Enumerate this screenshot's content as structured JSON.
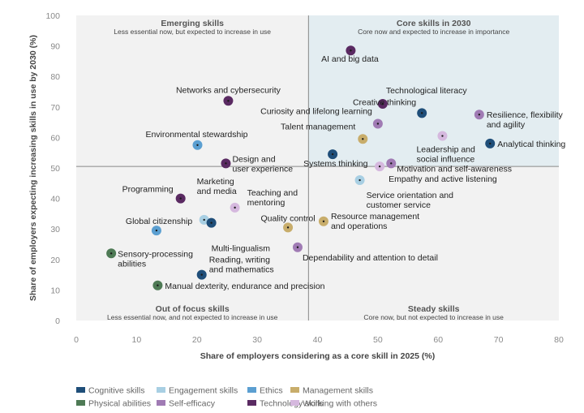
{
  "chart_data": {
    "type": "scatter",
    "xlabel": "Share of employers considering as a core skill in 2025 (%)",
    "ylabel": "Share of employers expecting increasing skills in use by 2030 (%)",
    "xlim": [
      0,
      80
    ],
    "ylim": [
      0,
      100
    ],
    "xticks": [
      "0",
      "10",
      "20",
      "30",
      "40",
      "50",
      "60",
      "70",
      "80"
    ],
    "yticks": [
      "0",
      "10",
      "20",
      "30",
      "40",
      "50",
      "60",
      "70",
      "80",
      "90",
      "100"
    ],
    "divider": {
      "x": 38.5,
      "y": 50.5
    },
    "quadrants": [
      {
        "key": "tl",
        "title": "Emerging skills",
        "subtitle": "Less essential now, but expected to increase in use"
      },
      {
        "key": "tr",
        "title": "Core skills in 2030",
        "subtitle": "Core now and expected to increase in importance"
      },
      {
        "key": "bl",
        "title": "Out of focus skills",
        "subtitle": "Less essential now, and not expected to increase in use"
      },
      {
        "key": "br",
        "title": "Steady skills",
        "subtitle": "Core now, but not expected to increase in use"
      }
    ],
    "categories": [
      {
        "name": "Cognitive skills",
        "color": "#1f4e79"
      },
      {
        "name": "Engagement skills",
        "color": "#a8cfe3"
      },
      {
        "name": "Ethics",
        "color": "#5b9fd1"
      },
      {
        "name": "Management skills",
        "color": "#c8ad6b"
      },
      {
        "name": "Physical abilities",
        "color": "#4e7a55"
      },
      {
        "name": "Self-efficacy",
        "color": "#a07bb4"
      },
      {
        "name": "Technology skills",
        "color": "#5a2a62"
      },
      {
        "name": "Working with others",
        "color": "#d5b8de"
      }
    ],
    "points": [
      {
        "label": "AI and big data",
        "x": 45.5,
        "y": 88.5,
        "cat": 6
      },
      {
        "label": "Technological literacy",
        "x": 50.8,
        "y": 71,
        "cat": 6
      },
      {
        "label": "Creative thinking",
        "x": 57.3,
        "y": 68,
        "cat": 0
      },
      {
        "label": "Resilience, flexibility and agility",
        "x": 66.8,
        "y": 67.5,
        "cat": 5
      },
      {
        "label": "Curiosity and lifelong learning",
        "x": 50,
        "y": 64.5,
        "cat": 5
      },
      {
        "label": "Talent management",
        "x": 47.5,
        "y": 59.5,
        "cat": 3
      },
      {
        "label": "Leadership and social influence",
        "x": 60.7,
        "y": 60.5,
        "cat": 7
      },
      {
        "label": "Analytical thinking",
        "x": 68.6,
        "y": 58,
        "cat": 0
      },
      {
        "label": "Systems thinking",
        "x": 42.5,
        "y": 54.5,
        "cat": 0
      },
      {
        "label": "Motivation and self-awareness",
        "x": 52.2,
        "y": 51.5,
        "cat": 5
      },
      {
        "label": "Empathy and active listening",
        "x": 50.3,
        "y": 50.5,
        "cat": 7
      },
      {
        "label": "Service orientation and customer service",
        "x": 47,
        "y": 46,
        "cat": 1
      },
      {
        "label": "Networks and cybersecurity",
        "x": 25.2,
        "y": 72,
        "cat": 6
      },
      {
        "label": "Environmental stewardship",
        "x": 20.1,
        "y": 57.5,
        "cat": 2
      },
      {
        "label": "Design and user experience",
        "x": 24.8,
        "y": 51.5,
        "cat": 6
      },
      {
        "label": "Programming",
        "x": 17.3,
        "y": 40,
        "cat": 6
      },
      {
        "label": "Marketing and media",
        "x": 21.2,
        "y": 33,
        "cat": 1
      },
      {
        "label": "Teaching and mentoring",
        "x": 26.3,
        "y": 37,
        "cat": 7
      },
      {
        "label": "Multi-lingualism",
        "x": 22.4,
        "y": 32,
        "cat": 0
      },
      {
        "label": "Global citizenship",
        "x": 13.3,
        "y": 29.5,
        "cat": 2
      },
      {
        "label": "Quality control",
        "x": 35.1,
        "y": 30.5,
        "cat": 3
      },
      {
        "label": "Resource management and operations",
        "x": 41,
        "y": 32.5,
        "cat": 3
      },
      {
        "label": "Sensory-processing abilities",
        "x": 5.8,
        "y": 22,
        "cat": 4
      },
      {
        "label": "Dependability and attention to detail",
        "x": 36.7,
        "y": 24,
        "cat": 5
      },
      {
        "label": "Reading, writing and mathematics",
        "x": 20.8,
        "y": 15,
        "cat": 0
      },
      {
        "label": "Manual dexterity, endurance and precision",
        "x": 13.5,
        "y": 11.5,
        "cat": 4
      }
    ]
  }
}
